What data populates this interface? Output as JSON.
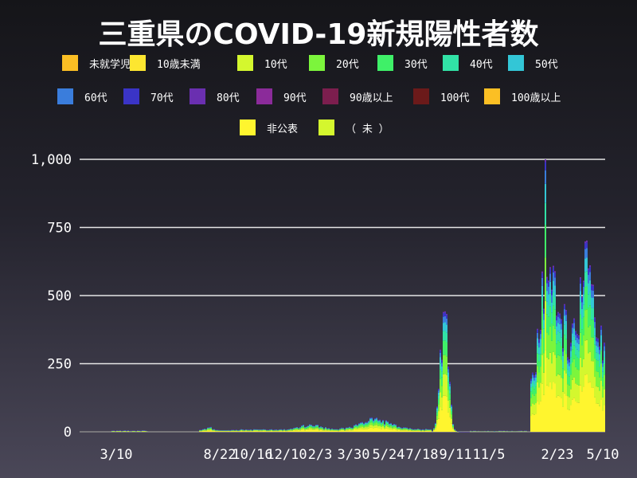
{
  "chart_data": {
    "type": "bar",
    "stacked": true,
    "title": "三重県のCOVID-19新規陽性者数",
    "xlabel": "",
    "ylabel": "",
    "ylim": [
      0,
      1000
    ],
    "yticks": [
      "0",
      "250",
      "500",
      "750",
      "1,000"
    ],
    "xticks": [
      "3/10",
      "8/22",
      "10/16",
      "12/10",
      "2/3",
      "3/30",
      "5/24",
      "7/18",
      "9/11",
      "11/5",
      "2/23",
      "5/10"
    ],
    "grid": true,
    "legend_position": "top",
    "series": [
      {
        "name": "未就学児",
        "color": "#fbbf24"
      },
      {
        "name": "10歳未満",
        "color": "#fde630"
      },
      {
        "name": "10代",
        "color": "#d4f72e"
      },
      {
        "name": "20代",
        "color": "#7cf53c"
      },
      {
        "name": "30代",
        "color": "#3ff068"
      },
      {
        "name": "40代",
        "color": "#31e2a6"
      },
      {
        "name": "50代",
        "color": "#33c6d6"
      },
      {
        "name": "60代",
        "color": "#3a7ddc"
      },
      {
        "name": "70代",
        "color": "#3a34c6"
      },
      {
        "name": "80代",
        "color": "#6a2fb0"
      },
      {
        "name": "90代",
        "color": "#8b2b9a"
      },
      {
        "name": "90歳以上",
        "color": "#7c1e4e"
      },
      {
        "name": "100代",
        "color": "#6b1a1a"
      },
      {
        "name": "100歳以上",
        "color": "#fbbf24"
      },
      {
        "name": "非公表",
        "color": "#fff52e"
      },
      {
        "name": "（ 未 ）",
        "color": "#d4f72e"
      }
    ],
    "daily_totals_shape": [
      {
        "period": "3/10",
        "peak_total": 5
      },
      {
        "period": "8/22",
        "peak_total": 20
      },
      {
        "period": "12/10",
        "peak_total": 30
      },
      {
        "period": "2/3",
        "peak_total": 40
      },
      {
        "period": "5/24",
        "peak_total": 60
      },
      {
        "period": "9/11",
        "peak_total": 510
      },
      {
        "period": "11/5",
        "peak_total": 5
      },
      {
        "period": "2/23",
        "peak_total": 1000
      },
      {
        "period": "5/10",
        "peak_total": 790
      }
    ]
  }
}
